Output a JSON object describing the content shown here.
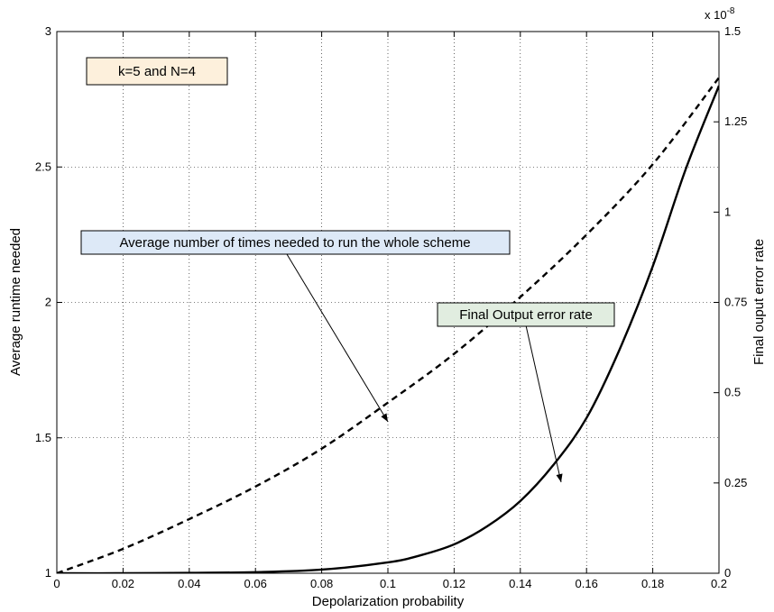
{
  "chart_data": {
    "type": "line",
    "title": "",
    "xlabel": "Depolarization probability",
    "ylabel_left": "Average runtime needed",
    "ylabel_right": "Final ouput error rate",
    "right_axis_multiplier": "x 10",
    "right_axis_exponent": "-8",
    "xlim": [
      0,
      0.2
    ],
    "ylim_left": [
      1,
      3
    ],
    "ylim_right": [
      0,
      1.5
    ],
    "grid": true,
    "x_ticks": [
      0,
      0.02,
      0.04,
      0.06,
      0.08,
      0.1,
      0.12,
      0.14,
      0.16,
      0.18,
      0.2
    ],
    "x_tick_labels": [
      "0",
      "0.02",
      "0.04",
      "0.06",
      "0.08",
      "0.1",
      "0.12",
      "0.14",
      "0.16",
      "0.18",
      "0.2"
    ],
    "y_left_ticks": [
      1,
      1.5,
      2,
      2.5,
      3
    ],
    "y_left_tick_labels": [
      "1",
      "1.5",
      "2",
      "2.5",
      "3"
    ],
    "y_right_ticks": [
      0,
      0.25,
      0.5,
      0.75,
      1,
      1.25,
      1.5
    ],
    "y_right_tick_labels": [
      "0",
      "0.25",
      "0.5",
      "0.75",
      "1",
      "1.25",
      "1.5"
    ],
    "series": [
      {
        "axis": "left",
        "style": "dashed",
        "x": [
          0,
          0.02,
          0.04,
          0.06,
          0.08,
          0.1,
          0.12,
          0.14,
          0.16,
          0.18,
          0.2
        ],
        "y": [
          1.0,
          1.09,
          1.2,
          1.32,
          1.46,
          1.63,
          1.81,
          2.02,
          2.25,
          2.51,
          2.83
        ]
      },
      {
        "axis": "right",
        "style": "solid",
        "x": [
          0,
          0.02,
          0.04,
          0.06,
          0.08,
          0.1,
          0.11,
          0.12,
          0.13,
          0.14,
          0.15,
          0.16,
          0.17,
          0.18,
          0.19,
          0.2
        ],
        "y": [
          0,
          0.0,
          0.001,
          0.003,
          0.01,
          0.03,
          0.05,
          0.08,
          0.13,
          0.2,
          0.3,
          0.43,
          0.62,
          0.85,
          1.12,
          1.35
        ]
      }
    ],
    "annotations": [
      {
        "text": "k=5 and N=4",
        "box_color": "#fdf0dc"
      },
      {
        "text": "Average number of times needed to run the whole scheme",
        "box_color": "#dde9f7",
        "arrow_to": {
          "x": 0.1,
          "y_left": 1.63
        }
      },
      {
        "text": "Final Output error rate",
        "box_color": "#e1ede0",
        "arrow_to": {
          "x": 0.153,
          "y_right": 0.34
        }
      }
    ]
  }
}
